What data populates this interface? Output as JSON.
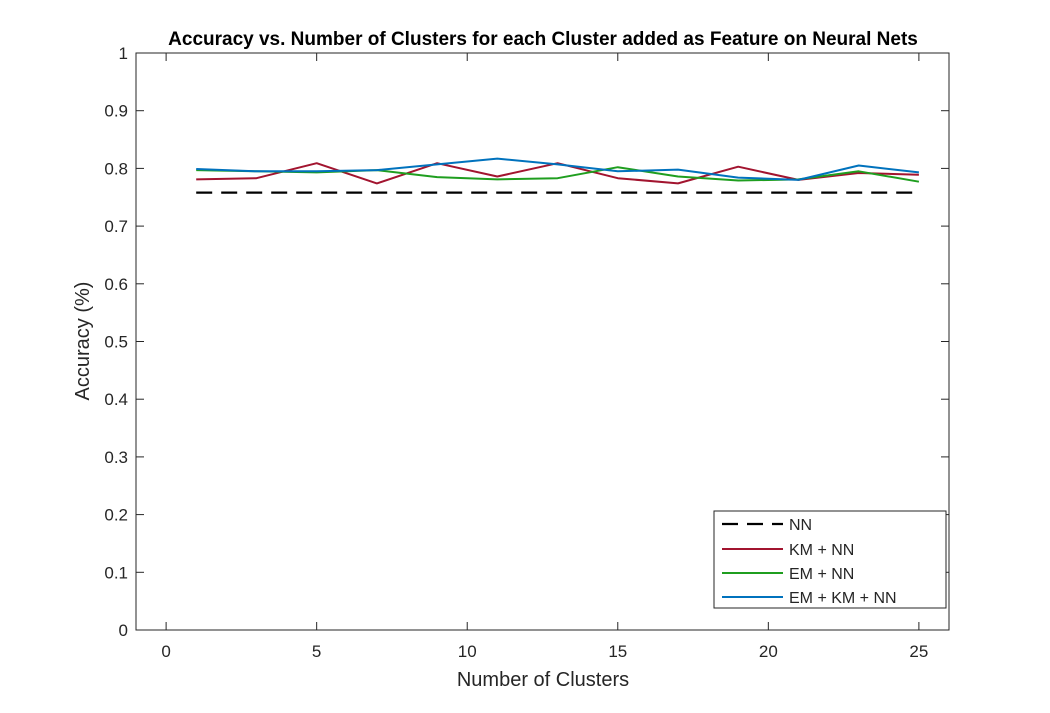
{
  "chart_data": {
    "type": "line",
    "title": "Accuracy vs. Number of Clusters for each Cluster added as Feature on Neural Nets",
    "xlabel": "Number of Clusters",
    "ylabel": "Accuracy (%)",
    "xlim": [
      -1,
      26
    ],
    "ylim": [
      0,
      1
    ],
    "xticks": [
      0,
      5,
      10,
      15,
      20,
      25
    ],
    "xtick_labels": [
      "0",
      "5",
      "10",
      "15",
      "20",
      "25"
    ],
    "yticks": [
      0,
      0.1,
      0.2,
      0.3,
      0.4,
      0.5,
      0.6,
      0.7,
      0.8,
      0.9,
      1
    ],
    "ytick_labels": [
      "0",
      "0.1",
      "0.2",
      "0.3",
      "0.4",
      "0.5",
      "0.6",
      "0.7",
      "0.8",
      "0.9",
      "1"
    ],
    "grid": false,
    "legend_position": "bottom-right",
    "x": [
      1,
      3,
      5,
      7,
      9,
      11,
      13,
      15,
      17,
      19,
      21,
      23,
      25
    ],
    "series": [
      {
        "name": "NN",
        "color": "#000000",
        "dash": "dashed",
        "values": [
          0.758,
          0.758,
          0.758,
          0.758,
          0.758,
          0.758,
          0.758,
          0.758,
          0.758,
          0.758,
          0.758,
          0.758,
          0.758
        ]
      },
      {
        "name": "KM + NN",
        "color": "#a2142f",
        "dash": "solid",
        "values": [
          0.781,
          0.783,
          0.809,
          0.774,
          0.809,
          0.786,
          0.809,
          0.783,
          0.774,
          0.803,
          0.78,
          0.792,
          0.789
        ]
      },
      {
        "name": "EM + NN",
        "color": "#1f9e1f",
        "dash": "solid",
        "values": [
          0.797,
          0.795,
          0.793,
          0.797,
          0.785,
          0.781,
          0.783,
          0.802,
          0.786,
          0.779,
          0.781,
          0.795,
          0.777
        ]
      },
      {
        "name": "EM + KM + NN",
        "color": "#0072bd",
        "dash": "solid",
        "values": [
          0.799,
          0.795,
          0.795,
          0.797,
          0.807,
          0.817,
          0.807,
          0.795,
          0.798,
          0.784,
          0.78,
          0.805,
          0.793
        ]
      }
    ]
  }
}
